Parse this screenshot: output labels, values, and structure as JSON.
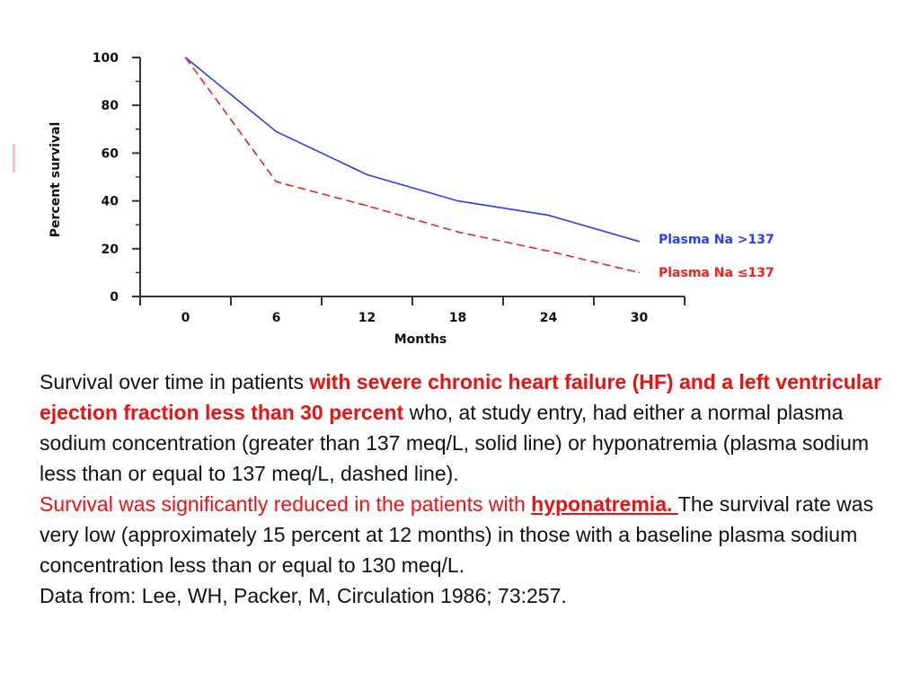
{
  "colors": {
    "series1": "#2a3ff5",
    "series2": "#ee2222",
    "highlight": "#ee1111"
  },
  "chart_data": {
    "type": "line",
    "ylabel": "Percent survival",
    "xlabel": "Months",
    "x_ticks": [
      "0",
      "6",
      "12",
      "18",
      "24",
      "30"
    ],
    "y_ticks": [
      "0",
      "20",
      "40",
      "60",
      "80",
      "100"
    ],
    "xlim": [
      -3,
      33
    ],
    "ylim": [
      0,
      100
    ],
    "grid": false,
    "series": [
      {
        "name": "Plasma Na >137",
        "style": "solid",
        "color": "#2a3ff5",
        "x": [
          0,
          6,
          12,
          18,
          24,
          30
        ],
        "y": [
          100,
          69,
          51,
          40,
          34,
          23
        ]
      },
      {
        "name": "Plasma Na ≤137",
        "style": "dashed",
        "color": "#ee2222",
        "x": [
          0,
          6,
          12,
          18,
          24,
          30
        ],
        "y": [
          100,
          48,
          38,
          27,
          19,
          10
        ]
      }
    ]
  },
  "caption": {
    "p1": "Survival over time in patients ",
    "p2": "with severe chronic heart failure (HF) and a left ventricular ejection fraction less than 30 percent",
    "p3": " who, at study entry, had either a normal plasma sodium concentration (greater than 137 meq/L, solid line) or hyponatremia (plasma sodium less than or equal to 137 meq/L, dashed line). ",
    "p4": "Survival was significantly reduced in the patients with ",
    "p5": "hyponatremia. ",
    "p6": "The survival rate was very low (approximately 15 percent at 12 months) in those with a baseline plasma sodium concentration less than or equal to 130 meq/L.",
    "p7": "Data from: Lee, WH, Packer, M, Circulation 1986; 73:257."
  }
}
